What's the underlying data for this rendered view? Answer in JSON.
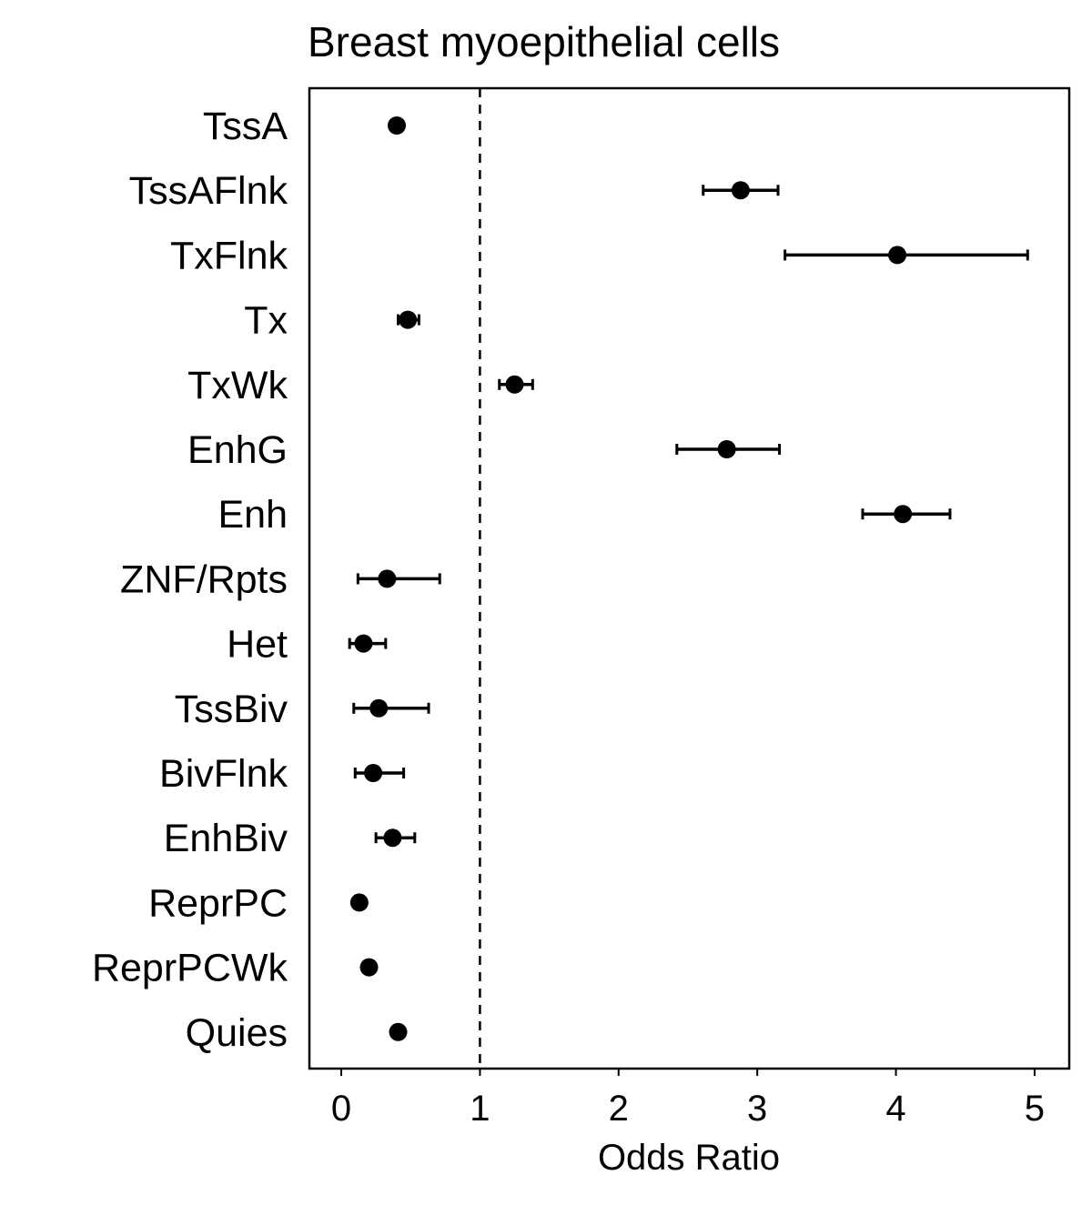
{
  "chart_data": {
    "type": "scatter",
    "title": "Breast myoepithelial cells",
    "xlabel": "Odds Ratio",
    "ylabel": "",
    "xlim": [
      -0.23,
      5.25
    ],
    "x_ticks": [
      0,
      1,
      2,
      3,
      4,
      5
    ],
    "x_tick_labels": [
      "0",
      "1",
      "2",
      "3",
      "4",
      "5"
    ],
    "reference_line": {
      "x": 1,
      "style": "dashed"
    },
    "grid": false,
    "legend": "none",
    "marker_color": "#000000",
    "categories": [
      "TssA",
      "TssAFlnk",
      "TxFlnk",
      "Tx",
      "TxWk",
      "EnhG",
      "Enh",
      "ZNF/Rpts",
      "Het",
      "TssBiv",
      "BivFlnk",
      "EnhBiv",
      "ReprPC",
      "ReprPCWk",
      "Quies"
    ],
    "points": [
      {
        "label": "TssA",
        "value": 0.4,
        "ci_low": 0.37,
        "ci_high": 0.43
      },
      {
        "label": "TssAFlnk",
        "value": 2.88,
        "ci_low": 2.61,
        "ci_high": 3.15
      },
      {
        "label": "TxFlnk",
        "value": 4.01,
        "ci_low": 3.2,
        "ci_high": 4.95
      },
      {
        "label": "Tx",
        "value": 0.48,
        "ci_low": 0.41,
        "ci_high": 0.56
      },
      {
        "label": "TxWk",
        "value": 1.25,
        "ci_low": 1.14,
        "ci_high": 1.38
      },
      {
        "label": "EnhG",
        "value": 2.78,
        "ci_low": 2.42,
        "ci_high": 3.16
      },
      {
        "label": "Enh",
        "value": 4.05,
        "ci_low": 3.76,
        "ci_high": 4.39
      },
      {
        "label": "ZNF/Rpts",
        "value": 0.33,
        "ci_low": 0.12,
        "ci_high": 0.71
      },
      {
        "label": "Het",
        "value": 0.16,
        "ci_low": 0.06,
        "ci_high": 0.32
      },
      {
        "label": "TssBiv",
        "value": 0.27,
        "ci_low": 0.09,
        "ci_high": 0.63
      },
      {
        "label": "BivFlnk",
        "value": 0.23,
        "ci_low": 0.1,
        "ci_high": 0.45
      },
      {
        "label": "EnhBiv",
        "value": 0.37,
        "ci_low": 0.25,
        "ci_high": 0.53
      },
      {
        "label": "ReprPC",
        "value": 0.13,
        "ci_low": 0.11,
        "ci_high": 0.16
      },
      {
        "label": "ReprPCWk",
        "value": 0.2,
        "ci_low": 0.16,
        "ci_high": 0.24
      },
      {
        "label": "Quies",
        "value": 0.41,
        "ci_low": 0.38,
        "ci_high": 0.44
      }
    ]
  }
}
